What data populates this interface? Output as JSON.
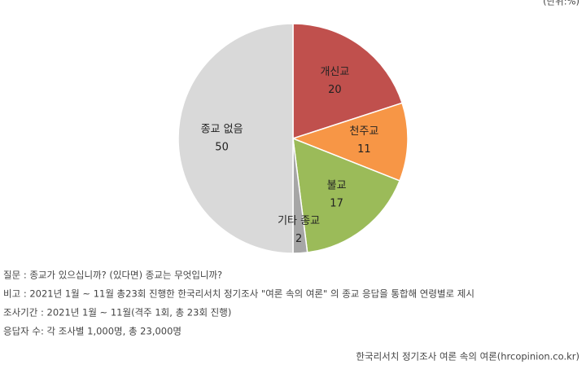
{
  "chart_data": {
    "type": "pie",
    "unit": "(단위:%)",
    "categories": [
      "개신교",
      "천주교",
      "불교",
      "기타 종교",
      "종교 없음"
    ],
    "values": [
      20,
      11,
      17,
      2,
      50
    ],
    "colors": [
      "#c0504d",
      "#f79646",
      "#9bbb59",
      "#a6a6a6",
      "#d9d9d9"
    ]
  },
  "notes": [
    "질문 : 종교가 있으십니까? (있다면) 종교는 무엇입니까?",
    "비고 : 2021년 1월 ~ 11월 총23회 진행한 한국리서치 정기조사 \"여론 속의 여론\" 의 종교 응답을 통합해 연령별로 제시",
    "조사기간 : 2021년 1월 ~ 11월(격주 1회, 총 23회 진행)",
    "응답자 수: 각 조사별 1,000명, 총 23,000명"
  ],
  "source": "한국리서치 정기조사 여론 속의 여론(hrcopinion.co.kr)"
}
